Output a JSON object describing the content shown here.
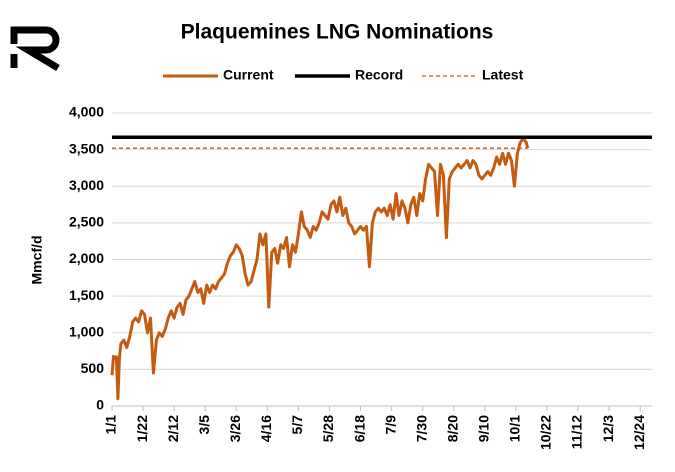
{
  "chart_data": {
    "type": "line",
    "title": "Plaquemines LNG Nominations",
    "y_label": "Mmcf/d",
    "xlim": [
      0,
      365
    ],
    "xticks": [
      {
        "value": 0,
        "label": "1/1"
      },
      {
        "value": 21,
        "label": "1/22"
      },
      {
        "value": 42,
        "label": "2/12"
      },
      {
        "value": 63,
        "label": "3/5"
      },
      {
        "value": 84,
        "label": "3/26"
      },
      {
        "value": 105,
        "label": "4/16"
      },
      {
        "value": 126,
        "label": "5/7"
      },
      {
        "value": 147,
        "label": "5/28"
      },
      {
        "value": 168,
        "label": "6/18"
      },
      {
        "value": 189,
        "label": "7/9"
      },
      {
        "value": 210,
        "label": "7/30"
      },
      {
        "value": 231,
        "label": "8/20"
      },
      {
        "value": 252,
        "label": "9/10"
      },
      {
        "value": 273,
        "label": "10/1"
      },
      {
        "value": 294,
        "label": "10/22"
      },
      {
        "value": 315,
        "label": "11/12"
      },
      {
        "value": 336,
        "label": "12/3"
      },
      {
        "value": 357,
        "label": "12/24"
      }
    ],
    "ylim": [
      0,
      4000
    ],
    "yticks": [
      0,
      500,
      {
        "value": 1000,
        "label": "1,000"
      },
      {
        "value": 1500,
        "label": "1,500"
      },
      {
        "value": 2000,
        "label": "2,000"
      },
      {
        "value": 2500,
        "label": "2,500"
      },
      {
        "value": 3000,
        "label": "3,000"
      },
      {
        "value": 3500,
        "label": "3,500"
      },
      {
        "value": 4000,
        "label": "4,000"
      }
    ],
    "grid": true,
    "legend": "top",
    "series": [
      {
        "name": "Current",
        "color": "#c55a11",
        "style": "solid",
        "x": [
          0,
          1,
          2,
          3,
          4,
          5,
          6,
          8,
          10,
          12,
          14,
          16,
          18,
          20,
          22,
          24,
          26,
          28,
          30,
          32,
          34,
          36,
          38,
          40,
          42,
          44,
          46,
          48,
          50,
          52,
          54,
          56,
          58,
          60,
          62,
          64,
          66,
          68,
          70,
          72,
          74,
          76,
          78,
          80,
          82,
          84,
          86,
          88,
          90,
          92,
          94,
          96,
          98,
          100,
          102,
          104,
          106,
          108,
          110,
          112,
          114,
          116,
          118,
          120,
          122,
          124,
          126,
          128,
          130,
          132,
          134,
          136,
          138,
          140,
          142,
          144,
          146,
          148,
          150,
          152,
          154,
          156,
          158,
          160,
          162,
          164,
          166,
          168,
          170,
          172,
          174,
          176,
          178,
          180,
          182,
          184,
          186,
          188,
          190,
          192,
          194,
          196,
          198,
          200,
          202,
          204,
          206,
          208,
          210,
          212,
          214,
          216,
          218,
          220,
          222,
          224,
          226,
          228,
          230,
          232,
          234,
          236,
          238,
          240,
          242,
          244,
          246,
          248,
          250,
          252,
          254,
          256,
          258,
          260,
          262,
          264,
          266,
          268,
          270,
          272,
          274,
          276,
          278,
          280,
          281
        ],
        "values": [
          420,
          680,
          650,
          670,
          100,
          650,
          850,
          900,
          800,
          950,
          1150,
          1200,
          1150,
          1300,
          1250,
          1000,
          1200,
          450,
          900,
          1000,
          950,
          1050,
          1200,
          1300,
          1200,
          1350,
          1400,
          1250,
          1450,
          1500,
          1600,
          1700,
          1550,
          1600,
          1400,
          1650,
          1550,
          1650,
          1600,
          1700,
          1750,
          1800,
          1950,
          2050,
          2100,
          2200,
          2150,
          2050,
          1800,
          1650,
          1700,
          1850,
          2000,
          2350,
          2200,
          2350,
          1350,
          2100,
          2150,
          1950,
          2200,
          2150,
          2300,
          1900,
          2200,
          2100,
          2350,
          2650,
          2450,
          2400,
          2300,
          2450,
          2400,
          2500,
          2650,
          2600,
          2550,
          2750,
          2800,
          2650,
          2850,
          2600,
          2700,
          2500,
          2450,
          2350,
          2400,
          2450,
          2400,
          2450,
          1900,
          2500,
          2650,
          2700,
          2650,
          2700,
          2600,
          2750,
          2550,
          2900,
          2600,
          2800,
          2700,
          2500,
          2750,
          2850,
          2600,
          2900,
          2800,
          3100,
          3300,
          3250,
          3200,
          2600,
          3300,
          3150,
          2300,
          3100,
          3200,
          3250,
          3300,
          3250,
          3300,
          3350,
          3250,
          3350,
          3300,
          3150,
          3100,
          3150,
          3200,
          3150,
          3250,
          3400,
          3300,
          3450,
          3300,
          3450,
          3350,
          3000,
          3450,
          3600,
          3650,
          3600,
          3520
        ]
      },
      {
        "name": "Record",
        "color": "#000000",
        "style": "solid",
        "x": [
          0,
          365
        ],
        "values": [
          3670,
          3670
        ]
      },
      {
        "name": "Latest",
        "color": "#c55a11",
        "style": "dashed",
        "x": [
          0,
          281
        ],
        "values": [
          3520,
          3520
        ]
      }
    ]
  }
}
